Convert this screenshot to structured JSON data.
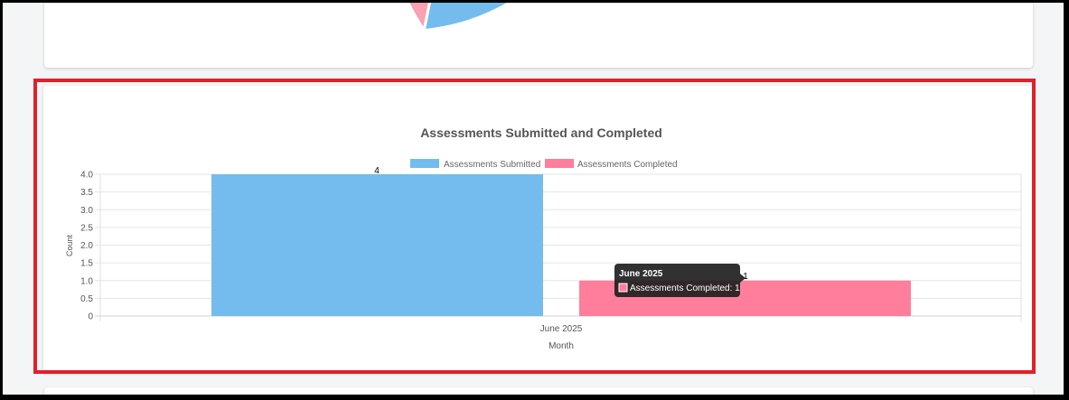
{
  "colors": {
    "submitted": "#74bcee",
    "completed": "#ff7e9b",
    "pie_blue": "#74bcee",
    "pie_pink": "#f7a1b3",
    "highlight": "#e0202a",
    "tooltip_bg": "#1f1f1f"
  },
  "chart_data": {
    "type": "bar",
    "title": "Assessments Submitted and Completed",
    "categories": [
      "June 2025"
    ],
    "series": [
      {
        "name": "Assessments Submitted",
        "values": [
          4
        ]
      },
      {
        "name": "Assessments Completed",
        "values": [
          1
        ]
      }
    ],
    "data_labels": [
      "4",
      "1"
    ],
    "xlabel": "Month",
    "ylabel": "Count",
    "ylim": [
      0,
      4
    ],
    "yticks": [
      "4.0",
      "3.5",
      "3.0",
      "2.5",
      "2.0",
      "1.5",
      "1.0",
      "0.5",
      "0"
    ],
    "grid": true,
    "legend": "top"
  },
  "tooltip": {
    "title": "June 2025",
    "text": "Assessments Completed: 1"
  }
}
